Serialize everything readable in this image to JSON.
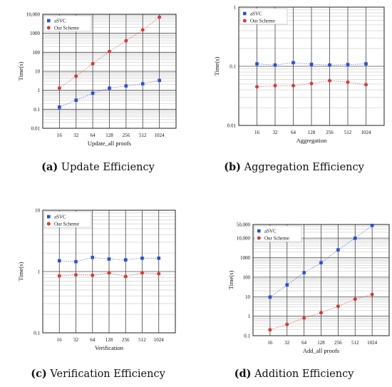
{
  "chart_data": [
    {
      "type": "line",
      "caption_label": "(a)",
      "caption_text": "Update Efficiency",
      "xlabel": "Update_all proofs",
      "ylabel": "Time(s)",
      "categories": [
        "16",
        "32",
        "64",
        "128",
        "256",
        "512",
        "1024"
      ],
      "yscale": "log",
      "ylim": [
        0.01,
        10000
      ],
      "yticks": [
        0.01,
        0.1,
        1,
        10,
        100,
        1000,
        10000
      ],
      "ytick_labels": [
        "0.01",
        "0.1",
        "1",
        "10",
        "100",
        "1000",
        "10,000"
      ],
      "grid": true,
      "legend_position": "top-left",
      "series": [
        {
          "name": "aSVC",
          "color": "#2a4fd6",
          "marker": "square",
          "values": [
            0.13,
            0.3,
            0.7,
            1.3,
            1.7,
            2.2,
            3.3
          ]
        },
        {
          "name": "Our Scheme",
          "color": "#d63a3a",
          "marker": "circle",
          "values": [
            1.3,
            5.5,
            25,
            110,
            400,
            1500,
            7000
          ]
        }
      ]
    },
    {
      "type": "line",
      "caption_label": "(b)",
      "caption_text": "Aggregation Efficiency",
      "xlabel": "Aggregation",
      "ylabel": "Time(s)",
      "categories": [
        "16",
        "32",
        "64",
        "128",
        "256",
        "512",
        "1024"
      ],
      "yscale": "log",
      "ylim": [
        0.01,
        1
      ],
      "yticks": [
        0.01,
        0.1,
        1
      ],
      "ytick_labels": [
        "0.01",
        "0.1",
        "1"
      ],
      "grid": true,
      "legend_position": "top-left",
      "series": [
        {
          "name": "aSVC",
          "color": "#2a4fd6",
          "marker": "square",
          "values": [
            0.11,
            0.105,
            0.115,
            0.108,
            0.105,
            0.107,
            0.11
          ]
        },
        {
          "name": "Our Scheme",
          "color": "#d63a3a",
          "marker": "circle",
          "values": [
            0.045,
            0.047,
            0.047,
            0.051,
            0.057,
            0.054,
            0.049
          ]
        }
      ]
    },
    {
      "type": "line",
      "caption_label": "(c)",
      "caption_text": "Verification Efficiency",
      "xlabel": "Verification",
      "ylabel": "Time(s)",
      "categories": [
        "16",
        "32",
        "64",
        "128",
        "256",
        "512",
        "1024"
      ],
      "yscale": "log",
      "ylim": [
        0.1,
        10
      ],
      "yticks": [
        0.1,
        1,
        10
      ],
      "ytick_labels": [
        "0,1",
        "1",
        "10"
      ],
      "grid": true,
      "legend_position": "top-left",
      "series": [
        {
          "name": "aSVC",
          "color": "#2a4fd6",
          "marker": "square",
          "values": [
            1.5,
            1.45,
            1.7,
            1.6,
            1.55,
            1.65,
            1.65
          ]
        },
        {
          "name": "Our Scheme",
          "color": "#d63a3a",
          "marker": "circle",
          "values": [
            0.85,
            0.88,
            0.87,
            0.95,
            0.83,
            0.95,
            0.92
          ]
        }
      ]
    },
    {
      "type": "line",
      "caption_label": "(d)",
      "caption_text": "Addition Efficiency",
      "xlabel": "Add_all proofs",
      "ylabel": "Time(s)",
      "categories": [
        "16",
        "32",
        "64",
        "128",
        "256",
        "512",
        "1024"
      ],
      "yscale": "log",
      "ylim": [
        0.1,
        50000
      ],
      "yticks": [
        0.1,
        1,
        10,
        100,
        1000,
        10000,
        50000
      ],
      "ytick_labels": [
        "0.1",
        "1",
        "10",
        "100",
        "1000",
        "10,000",
        "50,000"
      ],
      "grid": true,
      "legend_position": "top-left",
      "series": [
        {
          "name": "aSVC",
          "color": "#2a4fd6",
          "marker": "square",
          "values": [
            9.5,
            40,
            170,
            550,
            2500,
            10000,
            45000
          ]
        },
        {
          "name": "Our Scheme",
          "color": "#d63a3a",
          "marker": "circle",
          "values": [
            0.2,
            0.38,
            0.8,
            1.5,
            3.2,
            7.5,
            13
          ]
        }
      ]
    }
  ]
}
